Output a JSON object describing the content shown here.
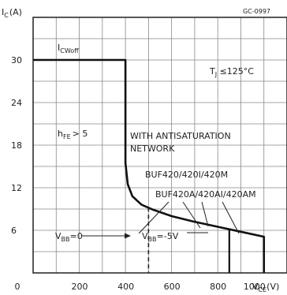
{
  "chart_data": {
    "type": "line",
    "figure_code": "GC-0997",
    "ylabel": "I",
    "ylabel_sub": "C",
    "ylabel_unit": "(A)",
    "xlabel": "V",
    "xlabel_sub": "CE",
    "xlabel_unit": "(V)",
    "xlim": [
      0,
      1100
    ],
    "ylim": [
      0,
      36
    ],
    "x_ticks": [
      0,
      200,
      400,
      600,
      800,
      1000
    ],
    "y_ticks": [
      6,
      12,
      18,
      24,
      30
    ],
    "grid": true,
    "series": [
      {
        "x": [
          0,
          400,
          400,
          410,
          430,
          470,
          520,
          600,
          700,
          800,
          900,
          1000,
          1000
        ],
        "y": [
          30,
          30,
          15.5,
          12.5,
          10.8,
          9.6,
          8.9,
          8.0,
          7.2,
          6.5,
          5.8,
          5.1,
          0
        ]
      }
    ],
    "drop_lines": [
      {
        "x": 500,
        "y": 9.2,
        "style": "dashed"
      },
      {
        "x": 850,
        "y": 6.2,
        "style": "solid"
      },
      {
        "x": 1000,
        "y": 5.1,
        "style": "solid"
      }
    ],
    "annotations": {
      "i_cwoff": {
        "main": "I",
        "sub": "CWoff"
      },
      "tj": {
        "main": "T",
        "sub": "J",
        "rest": " ≤125°C"
      },
      "hfe": {
        "main": "h",
        "sub": "FE",
        "rest": "> 5"
      },
      "antisat_line1": "WITH ANTISATURATION",
      "antisat_line2": "NETWORK",
      "buf420": "BUF420/420I/420M",
      "buf420a": "BUF420A/420AI/420AM",
      "vbb0": {
        "main": "V",
        "sub": "BB",
        "rest": "=0"
      },
      "vbb5": {
        "main": "V",
        "sub": "BB",
        "rest": "=-5V"
      }
    }
  }
}
